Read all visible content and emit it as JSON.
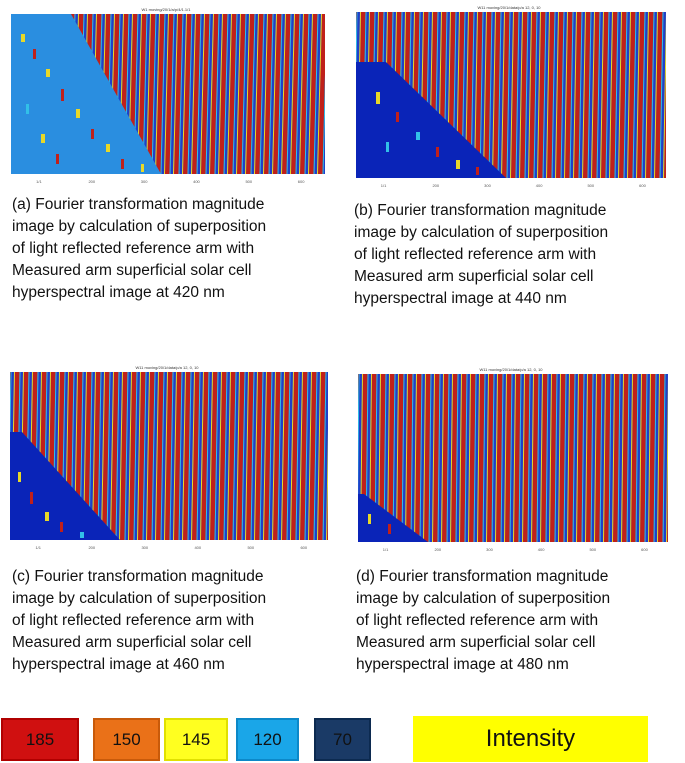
{
  "panels": [
    {
      "id": "a",
      "plot_title": "W1 moving/20/1/a/p/4/1.1/1",
      "ticks": [
        "1/1",
        "200",
        "300",
        "400",
        "500",
        "600"
      ],
      "caption": "(a) Fourier transformation  magnitude\nimage by calculation of superposition\nof light reflected reference arm with\nMeasured arm superficial solar cell\nhyperspectral image at 420 nm"
    },
    {
      "id": "b",
      "plot_title": "W11 moving/20/1/data/p/a 12, 0, 10",
      "ticks": [
        "1/1",
        "200",
        "300",
        "400",
        "500",
        "600"
      ],
      "caption": "(b) Fourier transformation  magnitude\nimage by calculation of superposition\nof light reflected reference arm with\nMeasured arm superficial solar cell\nhyperspectral image at 440 nm"
    },
    {
      "id": "c",
      "plot_title": "W11 moving/20/1/data/p/a 12, 0, 10",
      "ticks": [
        "1/1",
        "200",
        "300",
        "400",
        "500",
        "600"
      ],
      "caption": "(c) Fourier transformation  magnitude\nimage by calculation of superposition\nof light reflected reference arm with\nMeasured arm superficial solar cell\nhyperspectral image at 460 nm"
    },
    {
      "id": "d",
      "plot_title": "W11 moving/20/1/data/p/a 12, 0, 10",
      "ticks": [
        "1/1",
        "200",
        "300",
        "400",
        "500",
        "600"
      ],
      "caption": "(d) Fourier transformation  magnitude\nimage by calculation of superposition\nof light reflected reference arm with\nMeasured arm superficial solar cell\nhyperspectral image at 480 nm"
    }
  ],
  "legend": {
    "items": [
      {
        "value": "185",
        "color": "#d01010",
        "border": "#b00000"
      },
      {
        "value": "150",
        "color": "#ea7118",
        "border": "#c85a0a"
      },
      {
        "value": "145",
        "color": "#ffff20",
        "border": "#e0e000"
      },
      {
        "value": "120",
        "color": "#1aa6e8",
        "border": "#0c88c8"
      },
      {
        "value": "70",
        "color": "#1a3a66",
        "border": "#0c2a50"
      }
    ],
    "intensity_label": "Intensity",
    "intensity_color": "#ffff00"
  },
  "colors": {
    "stripe_red": "#c0201a",
    "stripe_blue": "#1f3fc8",
    "stripe_edge": "#e8d828",
    "stripe_cyan": "#32c0e8",
    "deep_blue": "#0a24b8"
  }
}
